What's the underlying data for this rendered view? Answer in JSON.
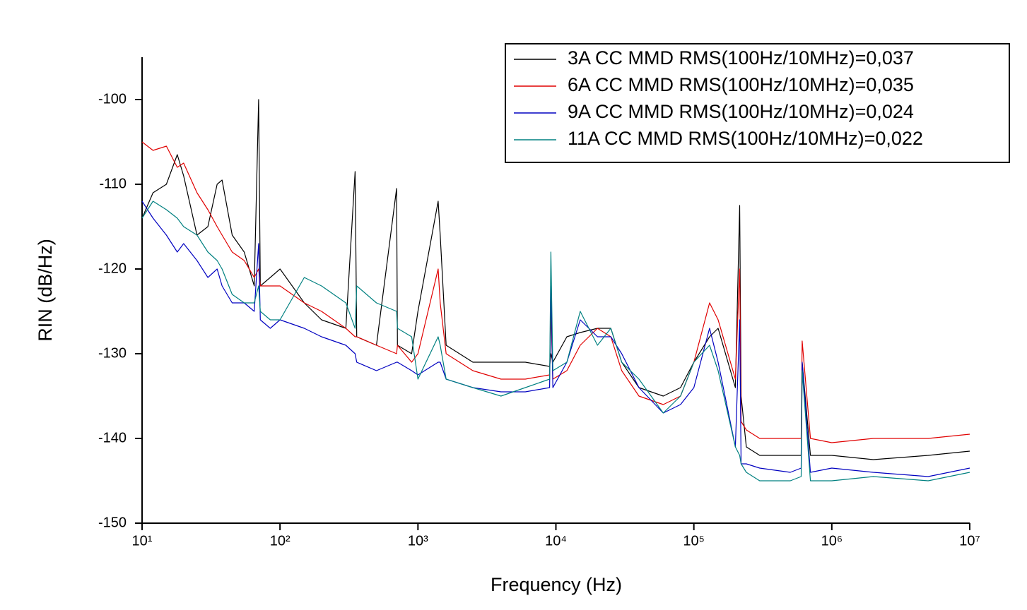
{
  "chart_data": {
    "type": "line",
    "xlabel": "Frequency (Hz)",
    "ylabel": "RIN (dB/Hz)",
    "xscale": "log",
    "xlim": [
      10,
      10000000
    ],
    "ylim": [
      -150,
      -95
    ],
    "xticks": [
      {
        "value": 10,
        "label": "10¹"
      },
      {
        "value": 100,
        "label": "10²"
      },
      {
        "value": 1000,
        "label": "10³"
      },
      {
        "value": 10000,
        "label": "10⁴"
      },
      {
        "value": 100000,
        "label": "10⁵"
      },
      {
        "value": 1000000,
        "label": "10⁶"
      },
      {
        "value": 10000000,
        "label": "10⁷"
      }
    ],
    "yticks": [
      -150,
      -140,
      -130,
      -120,
      -110,
      -100
    ],
    "legend": "top-right",
    "x": [
      10,
      12,
      15,
      18,
      20,
      25,
      30,
      35,
      38,
      45,
      55,
      65,
      70,
      72,
      85,
      100,
      150,
      200,
      300,
      350,
      360,
      500,
      700,
      710,
      900,
      1000,
      1400,
      1450,
      1600,
      2500,
      4000,
      6000,
      9000,
      9200,
      9500,
      12000,
      15000,
      20000,
      25000,
      30000,
      40000,
      60000,
      80000,
      100000,
      130000,
      150000,
      200000,
      215000,
      220000,
      240000,
      300000,
      500000,
      600000,
      610000,
      700000,
      1000000,
      2000000,
      5000000,
      10000000
    ],
    "series": [
      {
        "name": "3A CC MMD RMS(100Hz/10MHz)=0,037",
        "color": "#000000",
        "values": [
          -114,
          -111,
          -110,
          -106.5,
          -109,
          -116,
          -115,
          -110,
          -109.5,
          -116,
          -118,
          -122,
          -100,
          -122,
          -121,
          -120,
          -124,
          -126,
          -127,
          -108.5,
          -128,
          -129,
          -110.5,
          -129,
          -130,
          -125,
          -112,
          -116,
          -129,
          -131,
          -131,
          -131,
          -131.5,
          -130,
          -131,
          -128,
          -127.5,
          -127,
          -127,
          -131,
          -134,
          -135,
          -134,
          -131,
          -128,
          -127,
          -134,
          -112.5,
          -135,
          -141,
          -142,
          -142,
          -142,
          -131,
          -142,
          -142,
          -142.5,
          -142,
          -141.5
        ]
      },
      {
        "name": "6A CC MMD RMS(100Hz/10MHz)=0,035",
        "color": "#e00000",
        "values": [
          -105,
          -106,
          -105.5,
          -108,
          -107.5,
          -111,
          -113,
          -115,
          -116,
          -118,
          -119,
          -121,
          -120,
          -122,
          -122,
          -122,
          -124,
          -125,
          -127,
          -128,
          -128,
          -129,
          -130,
          -129,
          -131,
          -130,
          -120,
          -124,
          -130,
          -132,
          -133,
          -133,
          -132.5,
          -125,
          -133,
          -132,
          -129,
          -127,
          -128,
          -132,
          -135,
          -136,
          -135,
          -131,
          -124,
          -126,
          -133,
          -120,
          -138,
          -139,
          -140,
          -140,
          -140,
          -128.5,
          -140,
          -140.5,
          -140,
          -140,
          -139.5
        ]
      },
      {
        "name": "9A CC MMD RMS(100Hz/10MHz)=0,024",
        "color": "#0000c0",
        "values": [
          -112,
          -114,
          -116,
          -118,
          -117,
          -119,
          -121,
          -120,
          -122,
          -124,
          -124,
          -125,
          -117,
          -126,
          -127,
          -126,
          -127,
          -128,
          -129,
          -130,
          -131,
          -132,
          -131,
          -131,
          -132,
          -132.5,
          -131,
          -131,
          -133,
          -134,
          -134.5,
          -134.5,
          -134,
          -122,
          -134,
          -131,
          -126,
          -128,
          -128,
          -130,
          -134,
          -137,
          -136,
          -134,
          -127,
          -131,
          -141,
          -126,
          -143,
          -143,
          -143.5,
          -144,
          -143.5,
          -131,
          -144,
          -143.5,
          -144,
          -144.5,
          -143.5
        ]
      },
      {
        "name": "11A CC MMD RMS(100Hz/10MHz)=0,022",
        "color": "#008080",
        "values": [
          -114,
          -112,
          -113,
          -114,
          -115,
          -116,
          -118,
          -119,
          -120,
          -123,
          -124,
          -124,
          -122,
          -125,
          -126,
          -126,
          -121,
          -122,
          -124,
          -127,
          -122,
          -124,
          -125,
          -127,
          -128,
          -133,
          -128,
          -129,
          -133,
          -134,
          -135,
          -134,
          -133,
          -118,
          -132,
          -131,
          -125,
          -129,
          -127,
          -131,
          -133,
          -137,
          -135,
          -131,
          -129,
          -132,
          -141,
          -142,
          -143,
          -144,
          -145,
          -145,
          -144.5,
          -132,
          -145,
          -145,
          -144.5,
          -145,
          -144
        ]
      }
    ]
  }
}
